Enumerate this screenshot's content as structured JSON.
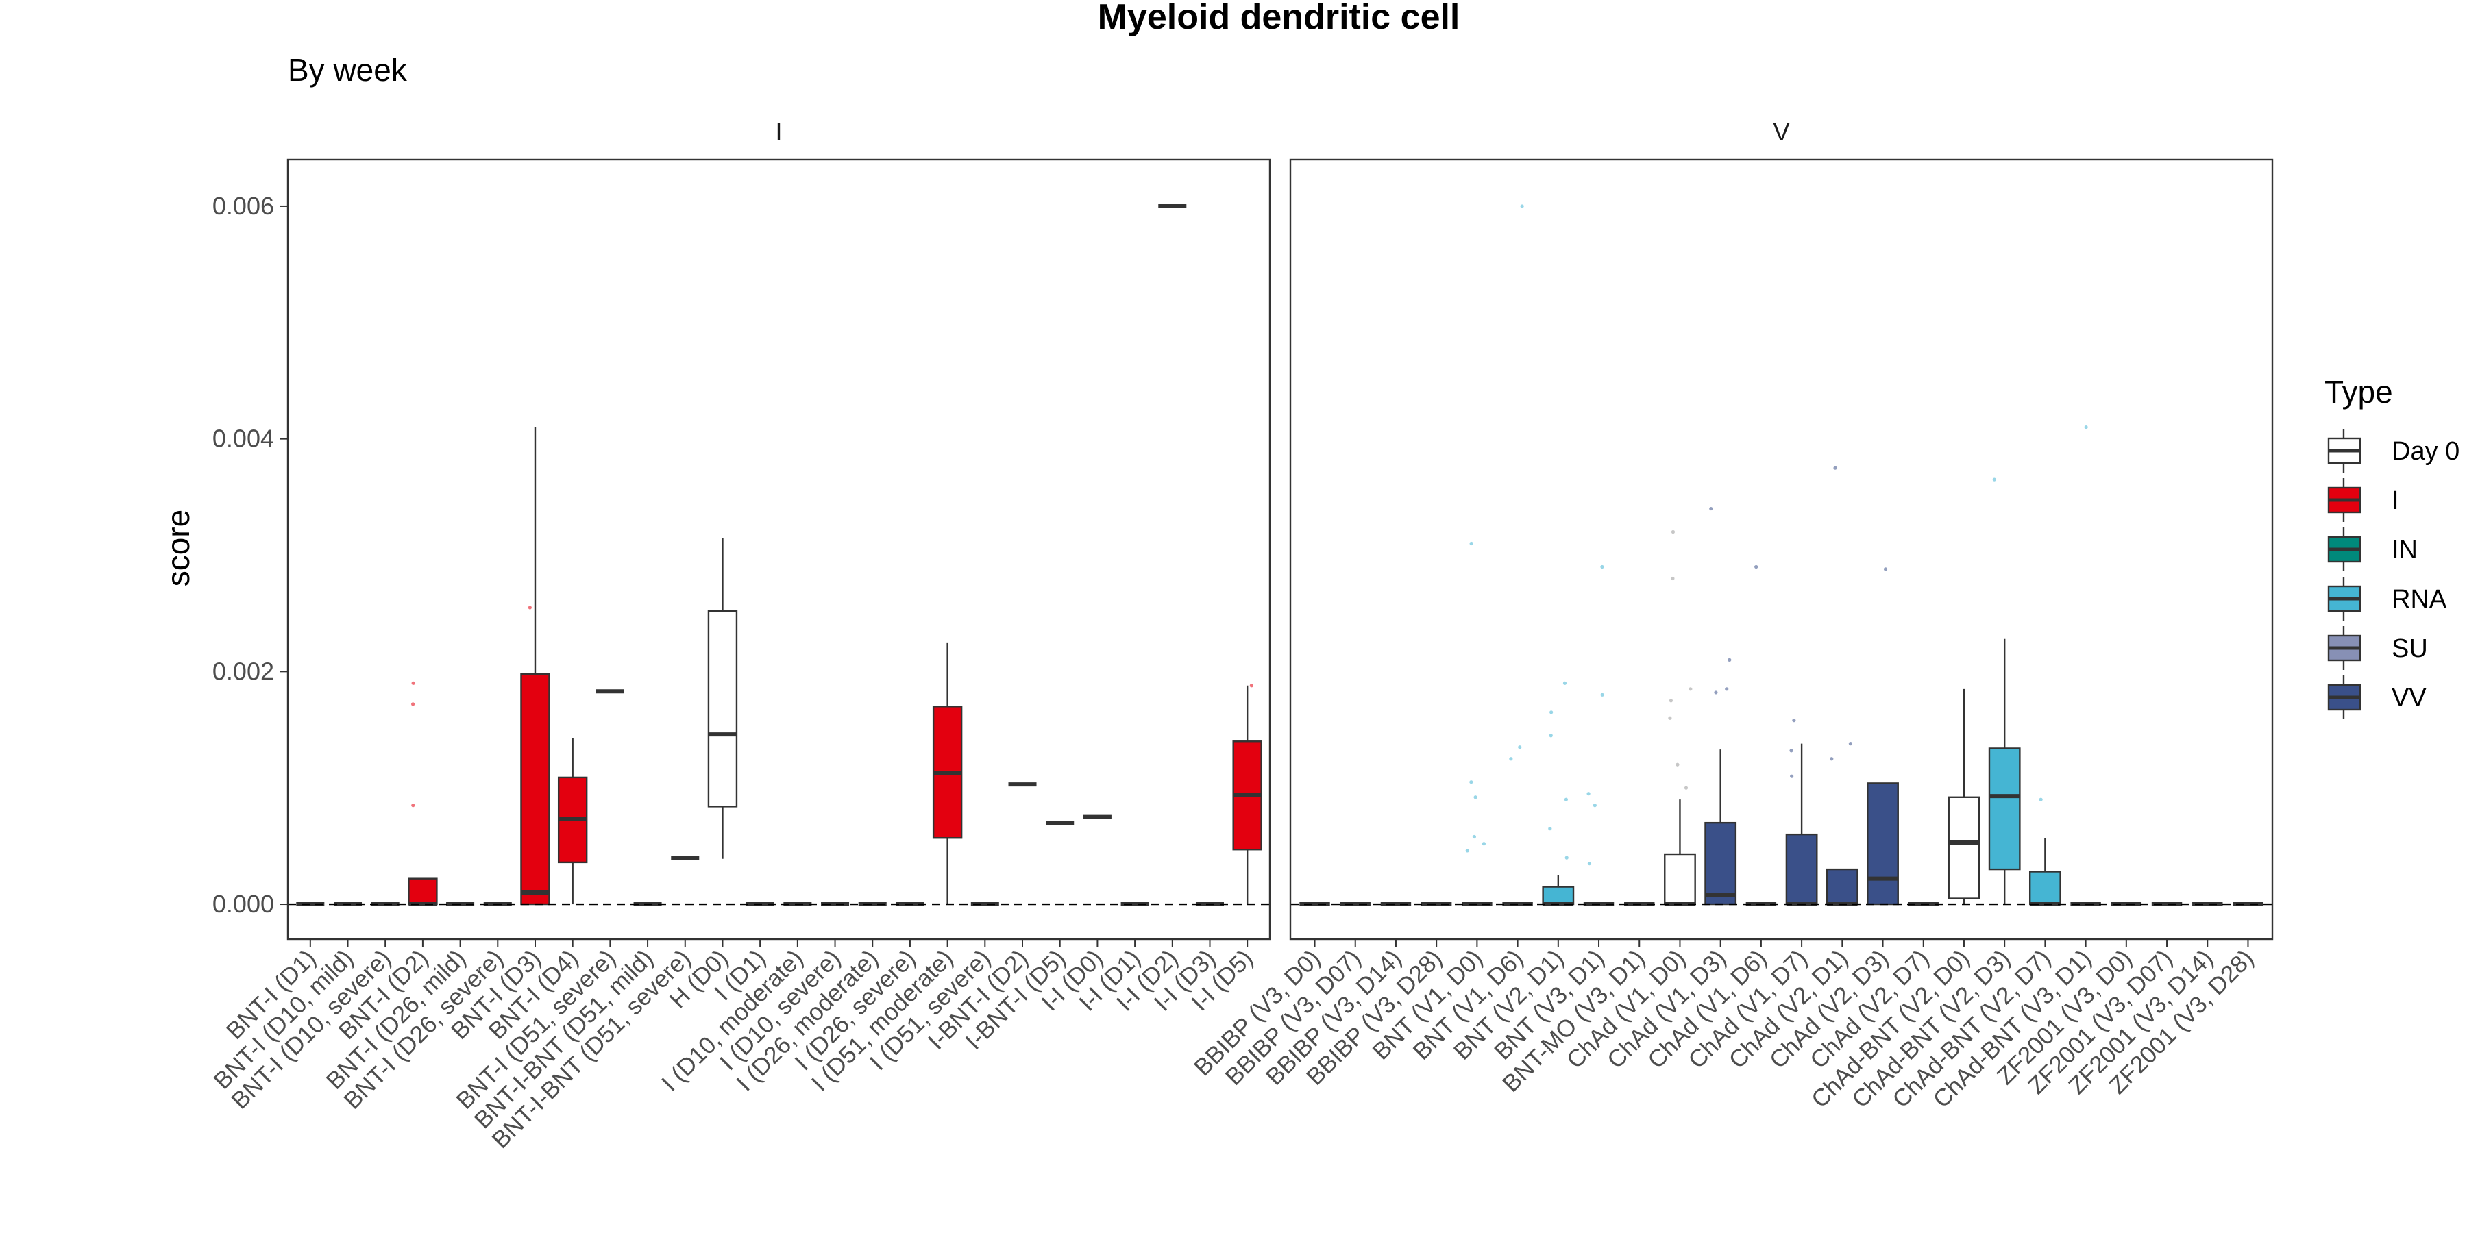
{
  "chart_data": {
    "type": "boxplot",
    "title": "Myeloid dendritic cell",
    "subtitle": "By week",
    "ylabel": "score",
    "xlabel": "",
    "ylim": [
      -0.0003,
      0.0064
    ],
    "yticks": [
      {
        "value": 0.0,
        "label": "0.000"
      },
      {
        "value": 0.002,
        "label": "0.002"
      },
      {
        "value": 0.004,
        "label": "0.004"
      },
      {
        "value": 0.006,
        "label": "0.006"
      }
    ],
    "reference_line": 0.0,
    "legend": {
      "title": "Type",
      "position": "right",
      "items": [
        {
          "label": "Day 0",
          "color": "#ffffff"
        },
        {
          "label": "I",
          "color": "#e3000f"
        },
        {
          "label": "IN",
          "color": "#00897b"
        },
        {
          "label": "RNA",
          "color": "#45b5d3"
        },
        {
          "label": "SU",
          "color": "#8790b5"
        },
        {
          "label": "VV",
          "color": "#3a5089"
        }
      ]
    },
    "panels": [
      {
        "strip": "I",
        "categories": [
          {
            "label": "BNT-I (D1)",
            "type": "I",
            "q1": 0,
            "median": 0,
            "q3": 0,
            "lo": 0,
            "hi": 0,
            "outliers": []
          },
          {
            "label": "BNT-I (D10, mild)",
            "type": "I",
            "q1": 0,
            "median": 0,
            "q3": 0,
            "lo": 0,
            "hi": 0,
            "outliers": []
          },
          {
            "label": "BNT-I (D10, severe)",
            "type": "I",
            "q1": 0,
            "median": 0,
            "q3": 0,
            "lo": 0,
            "hi": 0,
            "outliers": []
          },
          {
            "label": "BNT-I (D2)",
            "type": "I",
            "q1": 0,
            "median": 0,
            "q3": 0.00022,
            "lo": 0,
            "hi": 0.00022,
            "outliers": [
              0.0019,
              0.00172,
              0.00085
            ]
          },
          {
            "label": "BNT-I (D26, mild)",
            "type": "I",
            "q1": 0,
            "median": 0,
            "q3": 0,
            "lo": 0,
            "hi": 0,
            "outliers": []
          },
          {
            "label": "BNT-I (D26, severe)",
            "type": "I",
            "q1": 0,
            "median": 0,
            "q3": 0,
            "lo": 0,
            "hi": 0,
            "outliers": []
          },
          {
            "label": "BNT-I (D3)",
            "type": "I",
            "q1": 0,
            "median": 0.0001,
            "q3": 0.00198,
            "lo": 0,
            "hi": 0.0041,
            "outliers": [
              0.00255
            ]
          },
          {
            "label": "BNT-I (D4)",
            "type": "I",
            "q1": 0.00036,
            "median": 0.00073,
            "q3": 0.00109,
            "lo": 0,
            "hi": 0.00143,
            "outliers": []
          },
          {
            "label": "BNT-I (D51, severe)",
            "type": "I",
            "q1": 0.00183,
            "median": 0.00183,
            "q3": 0.00183,
            "lo": 0.00183,
            "hi": 0.00183,
            "outliers": []
          },
          {
            "label": "BNT-I-BNT (D51, mild)",
            "type": "I",
            "q1": 0,
            "median": 0,
            "q3": 0,
            "lo": 0,
            "hi": 0,
            "outliers": []
          },
          {
            "label": "BNT-I-BNT (D51, severe)",
            "type": "I",
            "q1": 0.0004,
            "median": 0.0004,
            "q3": 0.0004,
            "lo": 0.0004,
            "hi": 0.0004,
            "outliers": []
          },
          {
            "label": "H (D0)",
            "type": "Day 0",
            "q1": 0.00084,
            "median": 0.00146,
            "q3": 0.00252,
            "lo": 0.00039,
            "hi": 0.00315,
            "outliers": []
          },
          {
            "label": "I (D1)",
            "type": "I",
            "q1": 0,
            "median": 0,
            "q3": 0,
            "lo": 0,
            "hi": 0,
            "outliers": []
          },
          {
            "label": "I (D10, moderate)",
            "type": "I",
            "q1": 0,
            "median": 0,
            "q3": 0,
            "lo": 0,
            "hi": 0,
            "outliers": []
          },
          {
            "label": "I (D10, severe)",
            "type": "I",
            "q1": 0,
            "median": 0,
            "q3": 0,
            "lo": 0,
            "hi": 0,
            "outliers": []
          },
          {
            "label": "I (D26, moderate)",
            "type": "I",
            "q1": 0,
            "median": 0,
            "q3": 0,
            "lo": 0,
            "hi": 0,
            "outliers": []
          },
          {
            "label": "I (D26, severe)",
            "type": "I",
            "q1": 0,
            "median": 0,
            "q3": 0,
            "lo": 0,
            "hi": 0,
            "outliers": []
          },
          {
            "label": "I (D51, moderate)",
            "type": "I",
            "q1": 0.00057,
            "median": 0.00113,
            "q3": 0.0017,
            "lo": 0,
            "hi": 0.00225,
            "outliers": []
          },
          {
            "label": "I (D51, severe)",
            "type": "I",
            "q1": 0,
            "median": 0,
            "q3": 0,
            "lo": 0,
            "hi": 0,
            "outliers": []
          },
          {
            "label": "I-BNT-I (D2)",
            "type": "I",
            "q1": 0.00103,
            "median": 0.00103,
            "q3": 0.00103,
            "lo": 0.00103,
            "hi": 0.00103,
            "outliers": []
          },
          {
            "label": "I-BNT-I (D5)",
            "type": "I",
            "q1": 0.0007,
            "median": 0.0007,
            "q3": 0.0007,
            "lo": 0.0007,
            "hi": 0.0007,
            "outliers": []
          },
          {
            "label": "I-I (D0)",
            "type": "I",
            "q1": 0.00075,
            "median": 0.00075,
            "q3": 0.00075,
            "lo": 0.00075,
            "hi": 0.00075,
            "outliers": []
          },
          {
            "label": "I-I (D1)",
            "type": "I",
            "q1": 0,
            "median": 0,
            "q3": 0,
            "lo": 0,
            "hi": 0,
            "outliers": []
          },
          {
            "label": "I-I (D2)",
            "type": "I",
            "q1": 0.006,
            "median": 0.006,
            "q3": 0.006,
            "lo": 0.006,
            "hi": 0.006,
            "outliers": []
          },
          {
            "label": "I-I (D3)",
            "type": "I",
            "q1": 0,
            "median": 0,
            "q3": 0,
            "lo": 0,
            "hi": 0,
            "outliers": []
          },
          {
            "label": "I-I (D5)",
            "type": "I",
            "q1": 0.00047,
            "median": 0.00094,
            "q3": 0.0014,
            "lo": 0,
            "hi": 0.00188,
            "outliers": [
              0.00188
            ]
          }
        ]
      },
      {
        "strip": "V",
        "categories": [
          {
            "label": "BBIBP (V3, D0)",
            "type": "SU",
            "q1": 0,
            "median": 0,
            "q3": 0,
            "lo": 0,
            "hi": 0,
            "outliers": []
          },
          {
            "label": "BBIBP (V3, D07)",
            "type": "SU",
            "q1": 0,
            "median": 0,
            "q3": 0,
            "lo": 0,
            "hi": 0,
            "outliers": []
          },
          {
            "label": "BBIBP (V3, D14)",
            "type": "SU",
            "q1": 0,
            "median": 0,
            "q3": 0,
            "lo": 0,
            "hi": 0,
            "outliers": []
          },
          {
            "label": "BBIBP (V3, D28)",
            "type": "SU",
            "q1": 0,
            "median": 0,
            "q3": 0,
            "lo": 0,
            "hi": 0,
            "outliers": []
          },
          {
            "label": "BNT (V1, D0)",
            "type": "RNA",
            "q1": 0,
            "median": 0,
            "q3": 0,
            "lo": 0,
            "hi": 0,
            "outliers": [
              0.0031,
              0.00105,
              0.00092,
              0.00058,
              0.00052,
              0.00046
            ]
          },
          {
            "label": "BNT (V1, D6)",
            "type": "RNA",
            "q1": 0,
            "median": 0,
            "q3": 0,
            "lo": 0,
            "hi": 0,
            "outliers": [
              0.006,
              0.00135,
              0.00125
            ]
          },
          {
            "label": "BNT (V2, D1)",
            "type": "RNA",
            "q1": 0,
            "median": 0,
            "q3": 0.00015,
            "lo": 0,
            "hi": 0.00025,
            "outliers": [
              0.0019,
              0.00165,
              0.00145,
              0.0009,
              0.00065,
              0.0004
            ]
          },
          {
            "label": "BNT (V3, D1)",
            "type": "RNA",
            "q1": 0,
            "median": 0,
            "q3": 0,
            "lo": 0,
            "hi": 0,
            "outliers": [
              0.0029,
              0.0018,
              0.00095,
              0.00085,
              0.00035
            ]
          },
          {
            "label": "BNT-MO (V3, D1)",
            "type": "RNA",
            "q1": 0,
            "median": 0,
            "q3": 0,
            "lo": 0,
            "hi": 0,
            "outliers": []
          },
          {
            "label": "ChAd (V1, D0)",
            "type": "Day 0",
            "q1": 0,
            "median": 0,
            "q3": 0.00043,
            "lo": 0,
            "hi": 0.0009,
            "outliers": [
              0.0032,
              0.0028,
              0.00185,
              0.0016,
              0.00175,
              0.0012,
              0.001
            ]
          },
          {
            "label": "ChAd (V1, D3)",
            "type": "VV",
            "q1": 0,
            "median": 8e-05,
            "q3": 0.0007,
            "lo": 0,
            "hi": 0.00133,
            "outliers": [
              0.0034,
              0.0021,
              0.00185,
              0.00182
            ]
          },
          {
            "label": "ChAd (V1, D6)",
            "type": "VV",
            "q1": 0,
            "median": 0,
            "q3": 0,
            "lo": 0,
            "hi": 0,
            "outliers": [
              0.0029
            ]
          },
          {
            "label": "ChAd (V1, D7)",
            "type": "VV",
            "q1": 0,
            "median": 0,
            "q3": 0.0006,
            "lo": 0,
            "hi": 0.00138,
            "outliers": [
              0.00158,
              0.00132,
              0.0011
            ]
          },
          {
            "label": "ChAd (V2, D1)",
            "type": "VV",
            "q1": 0,
            "median": 0,
            "q3": 0.0003,
            "lo": 0,
            "hi": 0.0003,
            "outliers": [
              0.00375,
              0.00138,
              0.00125
            ]
          },
          {
            "label": "ChAd (V2, D3)",
            "type": "VV",
            "q1": 0,
            "median": 0.00022,
            "q3": 0.00104,
            "lo": 0,
            "hi": 0.00104,
            "outliers": [
              0.00288
            ]
          },
          {
            "label": "ChAd (V2, D7)",
            "type": "VV",
            "q1": 0,
            "median": 0,
            "q3": 0,
            "lo": 0,
            "hi": 0,
            "outliers": []
          },
          {
            "label": "ChAd-BNT (V2, D0)",
            "type": "Day 0",
            "q1": 5e-05,
            "median": 0.00053,
            "q3": 0.00092,
            "lo": 0,
            "hi": 0.00185,
            "outliers": []
          },
          {
            "label": "ChAd-BNT (V2, D3)",
            "type": "RNA",
            "q1": 0.0003,
            "median": 0.00093,
            "q3": 0.00134,
            "lo": 0,
            "hi": 0.00228,
            "outliers": [
              0.00365
            ]
          },
          {
            "label": "ChAd-BNT (V2, D7)",
            "type": "RNA",
            "q1": 0,
            "median": 0,
            "q3": 0.00028,
            "lo": 0,
            "hi": 0.00057,
            "outliers": [
              0.0009
            ]
          },
          {
            "label": "ChAd-BNT (V3, D1)",
            "type": "RNA",
            "q1": 0,
            "median": 0,
            "q3": 0,
            "lo": 0,
            "hi": 0,
            "outliers": [
              0.0041
            ]
          },
          {
            "label": "ZF2001 (V3, D0)",
            "type": "SU",
            "q1": 0,
            "median": 0,
            "q3": 0,
            "lo": 0,
            "hi": 0,
            "outliers": []
          },
          {
            "label": "ZF2001 (V3, D07)",
            "type": "SU",
            "q1": 0,
            "median": 0,
            "q3": 0,
            "lo": 0,
            "hi": 0,
            "outliers": []
          },
          {
            "label": "ZF2001 (V3, D14)",
            "type": "SU",
            "q1": 0,
            "median": 0,
            "q3": 0,
            "lo": 0,
            "hi": 0,
            "outliers": []
          },
          {
            "label": "ZF2001 (V3, D28)",
            "type": "SU",
            "q1": 0,
            "median": 0,
            "q3": 0,
            "lo": 0,
            "hi": 0,
            "outliers": []
          }
        ]
      }
    ]
  }
}
